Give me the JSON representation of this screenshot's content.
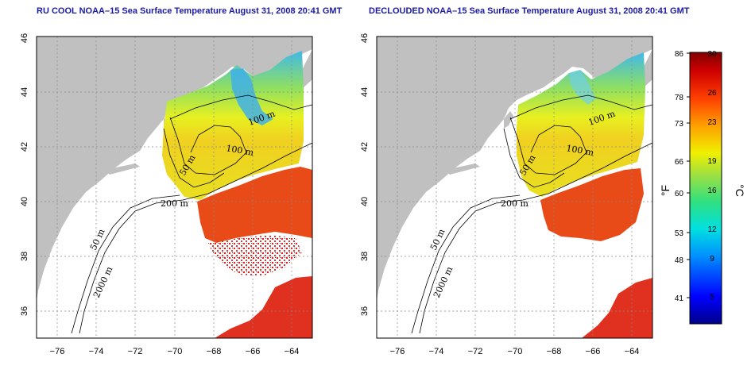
{
  "titles": {
    "left": "RU COOL NOAA–15 Sea Surface Temperature August 31, 2008 20:41 GMT",
    "right": "DECLOUDED NOAA–15 Sea Surface Temperature August 31, 2008 20:41 GMT"
  },
  "axes": {
    "lon_ticks": [
      "−76",
      "−74",
      "−72",
      "−70",
      "−68",
      "−66",
      "−64"
    ],
    "lat_ticks": [
      "36",
      "38",
      "40",
      "42",
      "44",
      "46"
    ]
  },
  "contour_labels": {
    "left": [
      "100 m",
      "100 m",
      "50 m",
      "200 m",
      "50 m",
      "2000 m"
    ],
    "right": [
      "100 m",
      "100 m",
      "50 m",
      "200 m",
      "50 m",
      "2000 m"
    ]
  },
  "colorbar": {
    "fahrenheit_ticks": [
      "86",
      "78",
      "73",
      "66",
      "60",
      "53",
      "48",
      "41"
    ],
    "celsius_ticks": [
      "30",
      "26",
      "23",
      "19",
      "16",
      "12",
      "9",
      "5"
    ],
    "fahrenheit_unit": "°F",
    "celsius_unit": "°C",
    "colors": [
      "#00008c",
      "#0000ff",
      "#0090ff",
      "#00e0e0",
      "#30e080",
      "#a0e040",
      "#f0f000",
      "#ffa000",
      "#ff4000",
      "#d00000",
      "#800000"
    ]
  },
  "colors": {
    "land": "#c0c0c0",
    "title": "#1a1aa6",
    "warm": "#e83818",
    "mid": "#90e050",
    "cool": "#40c8e0"
  }
}
